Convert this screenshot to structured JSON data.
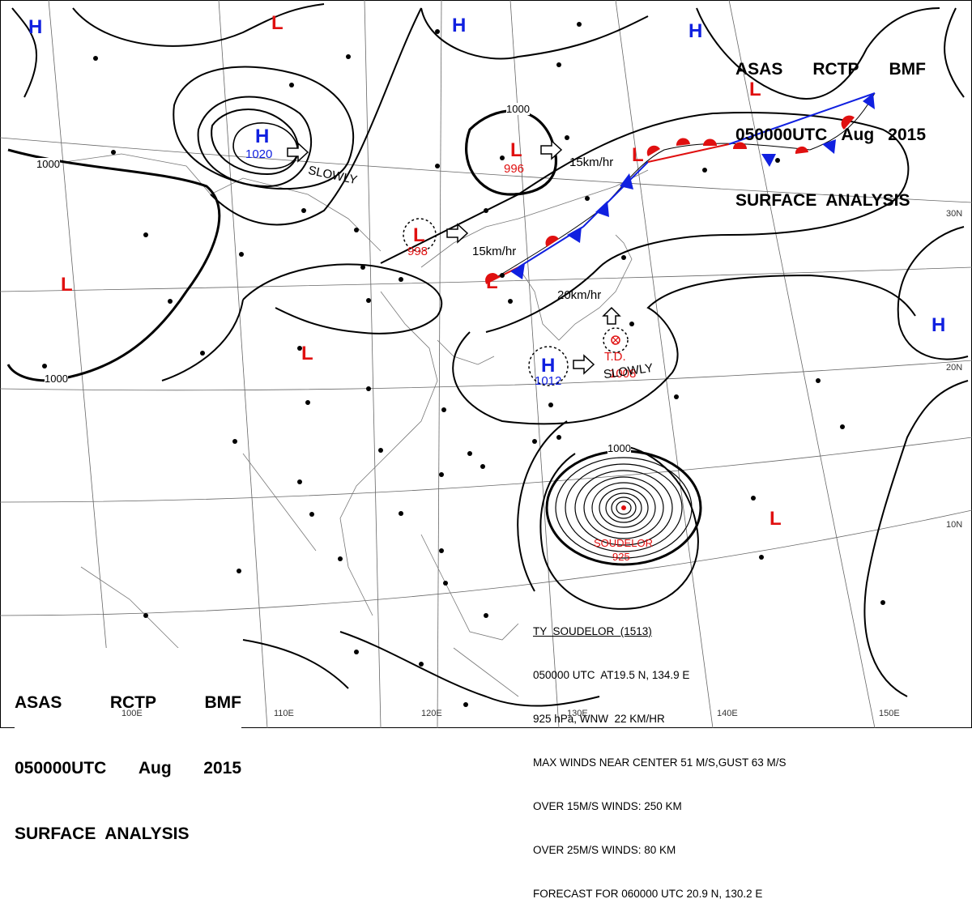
{
  "header": {
    "line1": [
      "ASAS",
      "RCTP",
      "BMF"
    ],
    "line2": [
      "050000UTC",
      "Aug",
      "2015"
    ],
    "line3": "SURFACE  ANALYSIS"
  },
  "systems": {
    "highs": [
      {
        "label": "H",
        "pressure": "1020"
      },
      {
        "label": "H",
        "pressure": "1012"
      },
      {
        "label": "H",
        "pressure": ""
      },
      {
        "label": "H",
        "pressure": ""
      },
      {
        "label": "H",
        "pressure": ""
      }
    ],
    "lows": [
      {
        "label": "L",
        "pressure": "996"
      },
      {
        "label": "L",
        "pressure": "998"
      },
      {
        "label": "L",
        "pressure": "1008"
      }
    ]
  },
  "motions": {
    "slowly": "SLOWLY",
    "speed_15": "15km/hr",
    "speed_20": "20km/hr"
  },
  "td_label": "T.D.",
  "typhoon": {
    "name": "SOUDELOR",
    "pressure": "925",
    "isobar_label": "1000"
  },
  "isobar_labels": [
    "1000",
    "1000",
    "1000"
  ],
  "info_block": [
    "TY  SOUDELOR  (1513)",
    "050000 UTC  AT19.5 N, 134.9 E",
    "925 hPa, WNW  22 KM/HR",
    "MAX WINDS NEAR CENTER 51 M/S,GUST 63 M/S",
    "OVER 15M/S WINDS: 250 KM",
    "OVER 25M/S WINDS: 80 KM",
    "FORECAST FOR 060000 UTC 20.9 N, 130.2 E"
  ],
  "grid_labels": {
    "lon": [
      "100E",
      "110E",
      "120E",
      "130E",
      "140E",
      "150E"
    ],
    "lat": [
      "30N",
      "20N",
      "10N"
    ]
  },
  "colors": {
    "high": "#1020e0",
    "low": "#e01010",
    "warm_front": "#e01010",
    "cold_front": "#1020e0",
    "isobar": "#000000"
  }
}
